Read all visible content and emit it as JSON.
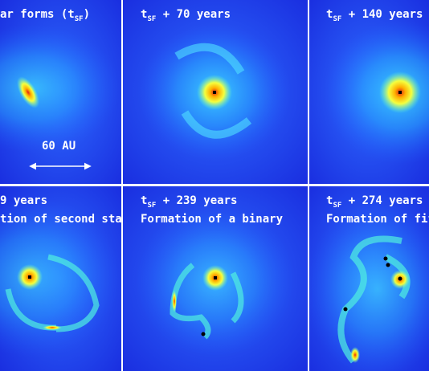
{
  "panels": [
    {
      "label": {
        "prefix": "ar forms (t",
        "sub": "SF",
        "suffix": ")"
      }
    },
    {
      "label": {
        "prefix": "t",
        "sub": "SF",
        "suffix": " + 70 years"
      }
    },
    {
      "label": {
        "prefix": "t",
        "sub": "SF",
        "suffix": " + 140 years"
      }
    },
    {
      "label": {
        "prefix": "9 years"
      },
      "caption": "tion of second star"
    },
    {
      "label": {
        "prefix": "t",
        "sub": "SF",
        "suffix": " + 239 years"
      },
      "caption": "Formation of a binary"
    },
    {
      "label": {
        "prefix": "t",
        "sub": "SF",
        "suffix": " + 274 years"
      },
      "caption": "Formation of fift"
    }
  ],
  "scale_bar": {
    "label": "60 AU"
  }
}
